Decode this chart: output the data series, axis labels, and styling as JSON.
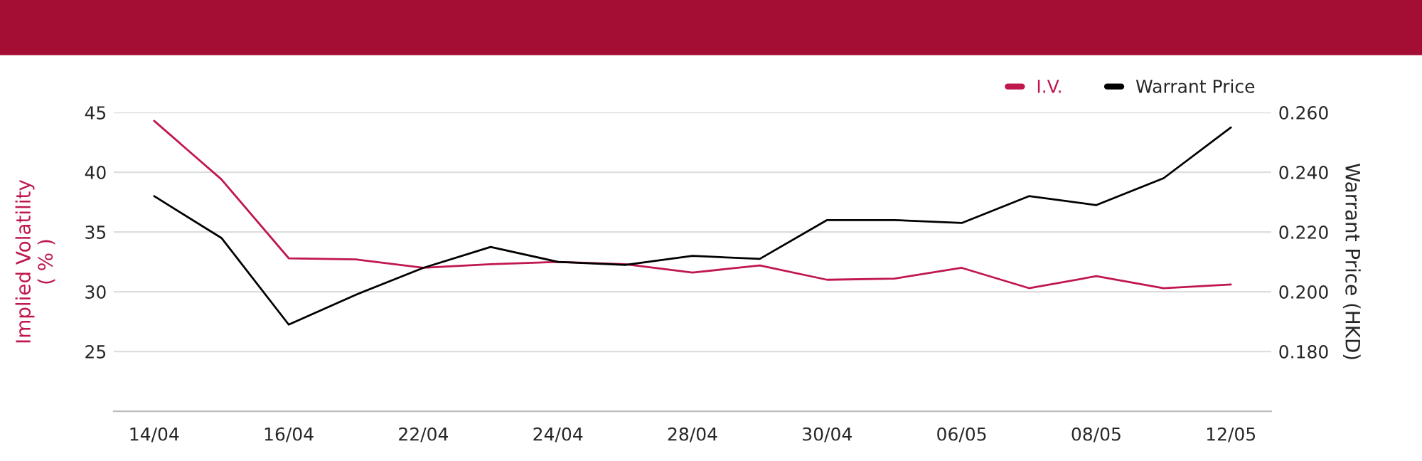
{
  "chart_data": {
    "type": "line",
    "categories": [
      "14/04",
      null,
      "16/04",
      null,
      "22/04",
      null,
      "24/04",
      null,
      "28/04",
      null,
      "30/04",
      null,
      "06/05",
      null,
      "08/05",
      null,
      "12/05"
    ],
    "series": [
      {
        "name": "I.V.",
        "color": "#c0174d",
        "values": [
          44.3,
          39.4,
          32.8,
          32.7,
          32.0,
          32.3,
          32.5,
          32.3,
          31.6,
          32.2,
          31.0,
          31.1,
          32.0,
          30.3,
          31.3,
          30.3,
          30.6
        ]
      },
      {
        "name": "Warrant Price",
        "color": "#000000",
        "axis": "y2",
        "values": [
          0.232,
          0.218,
          0.189,
          0.199,
          0.208,
          0.215,
          0.21,
          0.209,
          0.212,
          0.211,
          0.224,
          0.224,
          0.223,
          0.232,
          0.229,
          0.238,
          0.255
        ]
      }
    ],
    "ylabel": "Implied Volatility\n( % )",
    "y2label": "Warrant Price (HKD)",
    "ylim": [
      20,
      45
    ],
    "yticks": [
      {
        "value": 20,
        "label": null
      },
      25,
      30,
      35,
      40,
      45
    ],
    "y2lim": [
      0.16,
      0.26
    ],
    "y2ticks": [
      {
        "value": 0.16,
        "label": null
      },
      {
        "value": 0.18,
        "label": "0.180"
      },
      {
        "value": 0.2,
        "label": "0.200"
      },
      {
        "value": 0.22,
        "label": "0.220"
      },
      {
        "value": 0.24,
        "label": "0.240"
      },
      {
        "value": 0.26,
        "label": "0.260"
      }
    ],
    "grid": "y",
    "legend": "top right",
    "marker": "none",
    "line_style": "solid"
  }
}
